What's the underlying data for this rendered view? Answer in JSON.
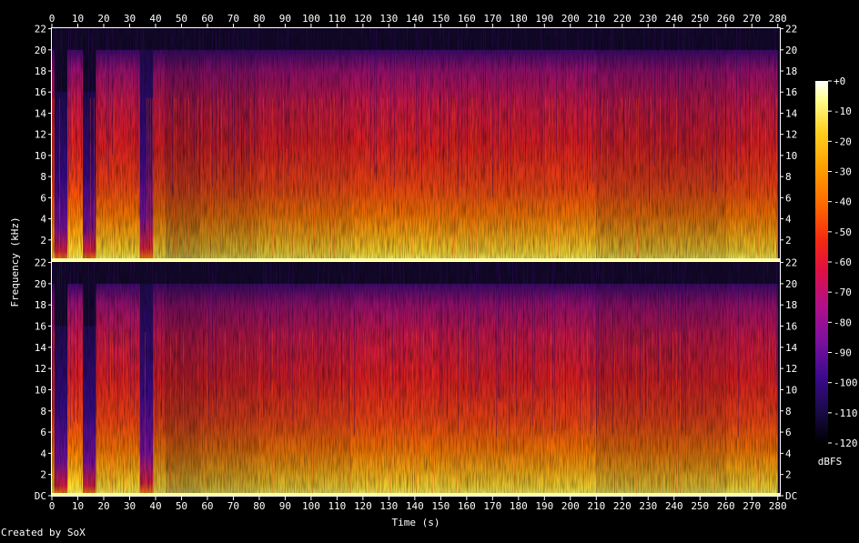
{
  "chart_data": {
    "type": "heatmap",
    "title": "",
    "xlabel": "Time (s)",
    "ylabel": "Frequency (kHz)",
    "x_ticks": [
      0,
      10,
      20,
      30,
      40,
      50,
      60,
      70,
      80,
      90,
      100,
      110,
      120,
      130,
      140,
      150,
      160,
      170,
      180,
      190,
      200,
      210,
      220,
      230,
      240,
      250,
      260,
      270,
      280
    ],
    "xlim": [
      0,
      280.8
    ],
    "y_ticks": [
      "DC",
      "2",
      "4",
      "6",
      "8",
      "10",
      "12",
      "14",
      "16",
      "18",
      "20",
      "22"
    ],
    "ylim_khz": [
      0,
      22.05
    ],
    "channels": [
      {
        "name": "",
        "y_tick_labels": [
          "2",
          "4",
          "6",
          "8",
          "10",
          "12",
          "14",
          "16",
          "18",
          "20",
          "22"
        ]
      },
      {
        "name": "",
        "y_tick_labels": [
          "DC",
          "2",
          "4",
          "6",
          "8",
          "10",
          "12",
          "14",
          "16",
          "18",
          "20",
          "22"
        ]
      }
    ],
    "colorbar": {
      "label": "dBFS",
      "range": [
        -120,
        0
      ],
      "ticks": [
        "+0",
        "-10",
        "-20",
        "-30",
        "-40",
        "-50",
        "-60",
        "-70",
        "-80",
        "-90",
        "-100",
        "-110",
        "-120"
      ],
      "colors": [
        "#000000",
        "#1a0a4a",
        "#3a0a8a",
        "#7a10a0",
        "#b0108a",
        "#e01040",
        "#f52a10",
        "#ff6a00",
        "#ffa000",
        "#ffd020",
        "#ffff90",
        "#ffffff"
      ]
    },
    "spectral_profile": [
      {
        "t_start": 0,
        "t_end": 1,
        "cutoff_khz": 20,
        "level_db": -55
      },
      {
        "t_start": 1,
        "t_end": 6,
        "cutoff_khz": 16,
        "level_db": -100
      },
      {
        "t_start": 6,
        "t_end": 12,
        "cutoff_khz": 20,
        "level_db": -45
      },
      {
        "t_start": 12,
        "t_end": 17,
        "cutoff_khz": 16,
        "level_db": -100
      },
      {
        "t_start": 17,
        "t_end": 34,
        "cutoff_khz": 20,
        "level_db": -50
      },
      {
        "t_start": 34,
        "t_end": 39,
        "cutoff_khz": 20,
        "level_db": -100
      },
      {
        "t_start": 39,
        "t_end": 44,
        "cutoff_khz": 20,
        "level_db": -55
      },
      {
        "t_start": 44,
        "t_end": 57,
        "cutoff_khz": 20,
        "level_db": -65
      },
      {
        "t_start": 57,
        "t_end": 79,
        "cutoff_khz": 20,
        "level_db": -60
      },
      {
        "t_start": 79,
        "t_end": 115,
        "cutoff_khz": 20,
        "level_db": -55
      },
      {
        "t_start": 115,
        "t_end": 150,
        "cutoff_khz": 20,
        "level_db": -50
      },
      {
        "t_start": 150,
        "t_end": 190,
        "cutoff_khz": 20,
        "level_db": -52
      },
      {
        "t_start": 190,
        "t_end": 210,
        "cutoff_khz": 20,
        "level_db": -50
      },
      {
        "t_start": 210,
        "t_end": 260,
        "cutoff_khz": 20,
        "level_db": -58
      },
      {
        "t_start": 260,
        "t_end": 280,
        "cutoff_khz": 20,
        "level_db": -52
      }
    ]
  },
  "footer": {
    "credit": "Created by SoX"
  }
}
